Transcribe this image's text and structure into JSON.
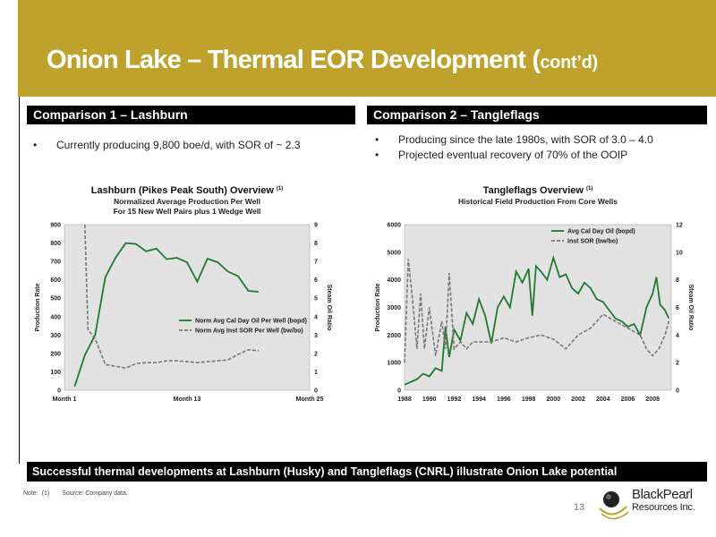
{
  "header": {
    "title_main": "Onion Lake – Thermal EOR Development (",
    "title_small": "cont’d)",
    "color": "#bfa22b"
  },
  "section1": {
    "heading": "Comparison 1 – Lashburn",
    "bullets": [
      "Currently producing 9,800 boe/d, with SOR of ~ 2.3"
    ]
  },
  "section2": {
    "heading": "Comparison 2 – Tangleflags",
    "bullets": [
      "Producing since the late 1980s, with SOR of 3.0 – 4.0",
      "Projected eventual recovery of 70% of the OOIP"
    ]
  },
  "bottom_banner": "Successful thermal developments at Lashburn (Husky) and Tangleflags (CNRL) illustrate Onion Lake potential",
  "note": {
    "label": "Note:",
    "ref": "(1)",
    "text": "Source: Company data."
  },
  "page_number": "13",
  "logo": {
    "name": "BlackPearl",
    "sub": "Resources Inc."
  },
  "chart_data": [
    {
      "type": "line",
      "title": "Lashburn (Pikes Peak South) Overview",
      "title_sup": "(1)",
      "subtitle": [
        "Normalized Average Production Per Well",
        "For 15 New Well Pairs plus 1 Wedge Well"
      ],
      "ylabel": "Production Rate",
      "y2label": "Steam Oil Ratio",
      "ylim": [
        0,
        900
      ],
      "y2lim": [
        0,
        9
      ],
      "yticks": [
        "0",
        "100",
        "200",
        "300",
        "400",
        "500",
        "600",
        "700",
        "800",
        "900"
      ],
      "y2ticks": [
        "0",
        "1",
        "2",
        "3",
        "4",
        "5",
        "6",
        "7",
        "8",
        "9"
      ],
      "xlim": [
        1,
        25
      ],
      "xticks": [
        {
          "value": 1,
          "label": "Month 1"
        },
        {
          "value": 13,
          "label": "Month 13"
        },
        {
          "value": 25,
          "label": "Month 25"
        }
      ],
      "legend_position": "lower-right",
      "grid": false,
      "series": [
        {
          "name": "Norm Avg Cal Day Oil Per Well (bopd)",
          "axis": "left",
          "style": "solid",
          "color": "#1e7a2e",
          "x": [
            2,
            3,
            4,
            5,
            6,
            7,
            8,
            9,
            10,
            11,
            12,
            13,
            14,
            15,
            16,
            17,
            18,
            19,
            20
          ],
          "y": [
            20,
            190,
            300,
            615,
            720,
            800,
            795,
            755,
            770,
            712,
            720,
            695,
            590,
            715,
            695,
            645,
            620,
            540,
            535
          ]
        },
        {
          "name": "Norm Avg Inst  SOR Per Well (bw/bo)",
          "axis": "right",
          "style": "dashed",
          "color": "#777777",
          "x": [
            3,
            3.3,
            4,
            5,
            6,
            7,
            8,
            9,
            10,
            11,
            12,
            13,
            14,
            15,
            16,
            17,
            18,
            19,
            20
          ],
          "y": [
            9,
            3.3,
            2.8,
            1.4,
            1.3,
            1.2,
            1.45,
            1.5,
            1.5,
            1.6,
            1.6,
            1.55,
            1.5,
            1.55,
            1.6,
            1.65,
            1.95,
            2.2,
            2.15
          ]
        }
      ]
    },
    {
      "type": "line",
      "title": "Tangleflags Overview",
      "title_sup": "(1)",
      "subtitle": [
        "Historical Field Production From Core Wells"
      ],
      "ylabel": "Production Rate",
      "y2label": "Steam Oil Ratio",
      "ylim": [
        0,
        6000
      ],
      "y2lim": [
        0,
        12
      ],
      "yticks": [
        "0",
        "1000",
        "2000",
        "3000",
        "4000",
        "5000",
        "6000"
      ],
      "y2ticks": [
        "0",
        "2",
        "4",
        "6",
        "8",
        "10",
        "12"
      ],
      "xlim": [
        1988,
        2009.5
      ],
      "xticks": [
        {
          "value": 1988,
          "label": "1988"
        },
        {
          "value": 1990,
          "label": "1990"
        },
        {
          "value": 1992,
          "label": "1992"
        },
        {
          "value": 1994,
          "label": "1994"
        },
        {
          "value": 1996,
          "label": "1996"
        },
        {
          "value": 1998,
          "label": "1998"
        },
        {
          "value": 2000,
          "label": "2000"
        },
        {
          "value": 2002,
          "label": "2002"
        },
        {
          "value": 2004,
          "label": "2004"
        },
        {
          "value": 2006,
          "label": "2006"
        },
        {
          "value": 2008,
          "label": "2008"
        }
      ],
      "legend_position": "top-right",
      "grid": false,
      "series": [
        {
          "name": "Avg Cal Day Oil (bopd)",
          "axis": "left",
          "style": "solid",
          "color": "#1e7a2e",
          "x": [
            1988,
            1988.5,
            1989,
            1989.5,
            1990,
            1990.5,
            1991,
            1991.3,
            1991.6,
            1992,
            1992.5,
            1993,
            1993.5,
            1994,
            1994.5,
            1995,
            1995.5,
            1996,
            1996.5,
            1997,
            1997.5,
            1998,
            1998.3,
            1998.6,
            1999,
            1999.5,
            2000,
            2000.5,
            2001,
            2001.5,
            2002,
            2002.5,
            2003,
            2003.5,
            2004,
            2004.5,
            2005,
            2005.5,
            2006,
            2006.5,
            2007,
            2007.5,
            2008,
            2008.3,
            2008.6,
            2009,
            2009.3
          ],
          "y": [
            200,
            300,
            400,
            600,
            500,
            800,
            700,
            2300,
            1200,
            2200,
            1800,
            2800,
            2400,
            3300,
            2700,
            1700,
            3000,
            3400,
            3000,
            4300,
            3900,
            4400,
            2700,
            4500,
            4300,
            4000,
            4800,
            4100,
            4200,
            3700,
            3500,
            3900,
            3700,
            3300,
            3200,
            2900,
            2600,
            2500,
            2300,
            2400,
            2000,
            3000,
            3500,
            4100,
            3100,
            2900,
            2600
          ]
        },
        {
          "name": "Inst SOR (bw/bo)",
          "axis": "right",
          "style": "dashed",
          "color": "#777777",
          "x": [
            1988,
            1988.3,
            1988.6,
            1989,
            1989.3,
            1989.6,
            1990,
            1990.5,
            1991,
            1991.3,
            1991.6,
            1992,
            1992.5,
            1993,
            1993.5,
            1994,
            1995,
            1996,
            1997,
            1998,
            1999,
            2000,
            2001,
            2002,
            2003,
            2004,
            2005,
            2006,
            2007,
            2007.5,
            2008,
            2008.5,
            2009,
            2009.3
          ],
          "y": [
            2,
            9.5,
            7,
            3,
            7,
            3,
            6,
            2.5,
            5,
            3,
            8.5,
            3,
            3.5,
            3,
            3.5,
            3.5,
            3.5,
            3.8,
            3.5,
            3.8,
            4,
            3.7,
            3,
            4,
            4.5,
            5.5,
            5,
            4.5,
            4,
            3,
            2.5,
            3,
            4,
            5
          ]
        }
      ]
    }
  ]
}
